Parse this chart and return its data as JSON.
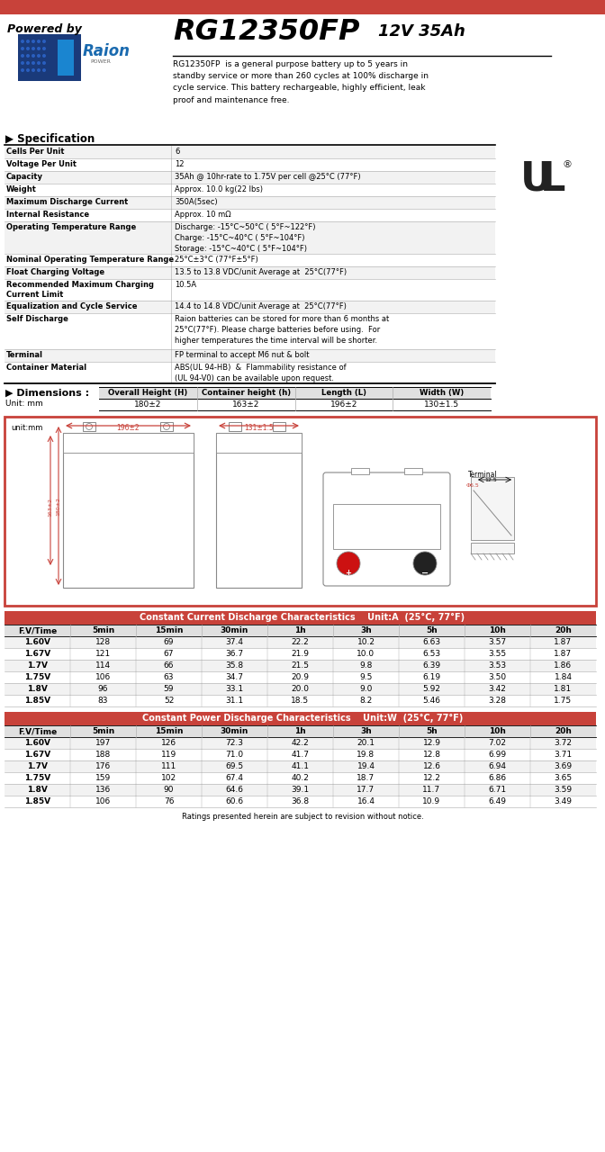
{
  "red_color": "#C8423A",
  "white": "#FFFFFF",
  "black": "#000000",
  "light_gray": "#E0E0E0",
  "mid_gray": "#AAAAAA",
  "alt_row": "#F2F2F2",
  "title_model": "RG12350FP",
  "title_specs": "12V 35Ah",
  "powered_by": "Powered by",
  "description": "RG12350FP  is a general purpose battery up to 5 years in\nstandby service or more than 260 cycles at 100% discharge in\ncycle service. This battery rechargeable, highly efficient, leak\nproof and maintenance free.",
  "spec_title": "Specification",
  "spec_rows": [
    [
      "Cells Per Unit",
      "6",
      14
    ],
    [
      "Voltage Per Unit",
      "12",
      14
    ],
    [
      "Capacity",
      "35Ah @ 10hr-rate to 1.75V per cell @25°C (77°F)",
      14
    ],
    [
      "Weight",
      "Approx. 10.0 kg(22 lbs)",
      14
    ],
    [
      "Maximum Discharge Current",
      "350A(5sec)",
      14
    ],
    [
      "Internal Resistance",
      "Approx. 10 mΩ",
      14
    ],
    [
      "Operating Temperature Range",
      "Discharge: -15°C~50°C ( 5°F~122°F)\nCharge: -15°C~40°C ( 5°F~104°F)\nStorage: -15°C~40°C ( 5°F~104°F)",
      36
    ],
    [
      "Nominal Operating Temperature Range",
      "25°C±3°C (77°F±5°F)",
      14
    ],
    [
      "Float Charging Voltage",
      "13.5 to 13.8 VDC/unit Average at  25°C(77°F)",
      14
    ],
    [
      "Recommended Maximum Charging\nCurrent Limit",
      "10.5A",
      24
    ],
    [
      "Equalization and Cycle Service",
      "14.4 to 14.8 VDC/unit Average at  25°C(77°F)",
      14
    ],
    [
      "Self Discharge",
      "Raion batteries can be stored for more than 6 months at\n25°C(77°F). Please charge batteries before using.  For\nhigher temperatures the time interval will be shorter.",
      40
    ],
    [
      "Terminal",
      "FP terminal to accept M6 nut & bolt",
      14
    ],
    [
      "Container Material",
      "ABS(UL 94-HB)  &  Flammability resistance of\n(UL 94-V0) can be available upon request.",
      24
    ]
  ],
  "dim_title": "Dimensions :",
  "dim_unit": "Unit: mm",
  "dim_headers": [
    "Overall Height (H)",
    "Container height (h)",
    "Length (L)",
    "Width (W)"
  ],
  "dim_values": [
    "180±2",
    "163±2",
    "196±2",
    "130±1.5"
  ],
  "cc_title": "Constant Current Discharge Characteristics    Unit:A  (25°C, 77°F)",
  "cc_headers": [
    "F.V/Time",
    "5min",
    "15min",
    "30min",
    "1h",
    "3h",
    "5h",
    "10h",
    "20h"
  ],
  "cc_rows": [
    [
      "1.60V",
      "128",
      "69",
      "37.4",
      "22.2",
      "10.2",
      "6.63",
      "3.57",
      "1.87"
    ],
    [
      "1.67V",
      "121",
      "67",
      "36.7",
      "21.9",
      "10.0",
      "6.53",
      "3.55",
      "1.87"
    ],
    [
      "1.7V",
      "114",
      "66",
      "35.8",
      "21.5",
      "9.8",
      "6.39",
      "3.53",
      "1.86"
    ],
    [
      "1.75V",
      "106",
      "63",
      "34.7",
      "20.9",
      "9.5",
      "6.19",
      "3.50",
      "1.84"
    ],
    [
      "1.8V",
      "96",
      "59",
      "33.1",
      "20.0",
      "9.0",
      "5.92",
      "3.42",
      "1.81"
    ],
    [
      "1.85V",
      "83",
      "52",
      "31.1",
      "18.5",
      "8.2",
      "5.46",
      "3.28",
      "1.75"
    ]
  ],
  "cp_title": "Constant Power Discharge Characteristics    Unit:W  (25°C, 77°F)",
  "cp_headers": [
    "F.V/Time",
    "5min",
    "15min",
    "30min",
    "1h",
    "3h",
    "5h",
    "10h",
    "20h"
  ],
  "cp_rows": [
    [
      "1.60V",
      "197",
      "126",
      "72.3",
      "42.2",
      "20.1",
      "12.9",
      "7.02",
      "3.72"
    ],
    [
      "1.67V",
      "188",
      "119",
      "71.0",
      "41.7",
      "19.8",
      "12.8",
      "6.99",
      "3.71"
    ],
    [
      "1.7V",
      "176",
      "111",
      "69.5",
      "41.1",
      "19.4",
      "12.6",
      "6.94",
      "3.69"
    ],
    [
      "1.75V",
      "159",
      "102",
      "67.4",
      "40.2",
      "18.7",
      "12.2",
      "6.86",
      "3.65"
    ],
    [
      "1.8V",
      "136",
      "90",
      "64.6",
      "39.1",
      "17.7",
      "11.7",
      "6.71",
      "3.59"
    ],
    [
      "1.85V",
      "106",
      "76",
      "60.6",
      "36.8",
      "16.4",
      "10.9",
      "6.49",
      "3.49"
    ]
  ],
  "footer": "Ratings presented herein are subject to revision without notice."
}
